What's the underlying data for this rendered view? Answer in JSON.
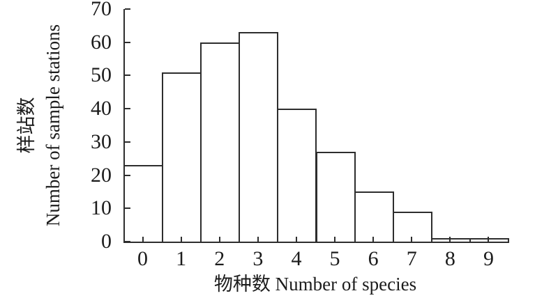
{
  "chart_data": {
    "type": "bar",
    "subtype": "histogram",
    "title": "",
    "categories": [
      "0",
      "1",
      "2",
      "3",
      "4",
      "5",
      "6",
      "7",
      "8",
      "9"
    ],
    "values": [
      23,
      51,
      60,
      63,
      40,
      27,
      15,
      9,
      1,
      1
    ],
    "xlabel": "物种数 Number of species",
    "ylabel_lines": [
      "样站数",
      "Number of sample stations"
    ],
    "ylim": [
      0,
      70
    ],
    "y_ticks": [
      "0",
      "10",
      "20",
      "30",
      "40",
      "50",
      "60",
      "70"
    ],
    "grid": false,
    "legend": "none",
    "bar_fill": "#ffffff",
    "bar_stroke": "#2d2d2d",
    "axis_color": "#2d2d2d",
    "text_color": "#1c1c1c",
    "background": "#ffffff"
  }
}
